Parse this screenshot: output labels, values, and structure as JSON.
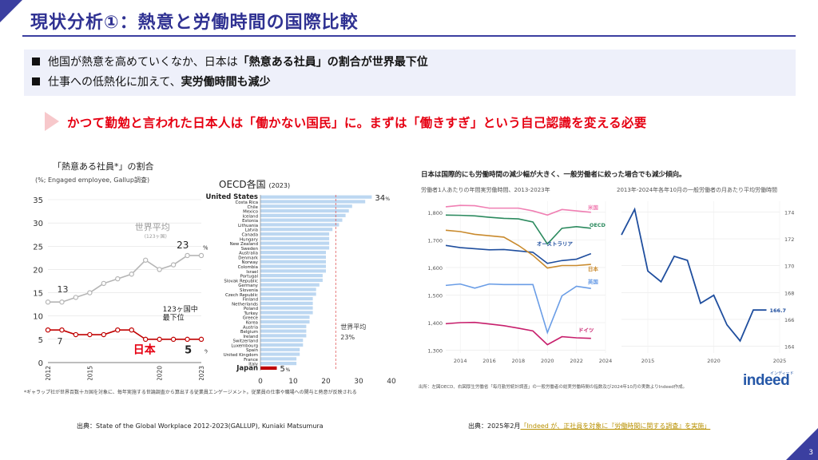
{
  "page": {
    "title": "現状分析①：熱意と労働時間の国際比較",
    "page_number": "3",
    "bullets": [
      {
        "pre": "他国が熱意を高めていくなか、日本は",
        "bold": "「熱意ある社員」の割合が世界最下位",
        "post": ""
      },
      {
        "pre": "仕事への低熱化に加えて、",
        "bold": "実労働時間も減少",
        "post": ""
      }
    ],
    "callout": "かつて勤勉と言われた日本人は「働かない国民」に。まずは「働きすぎ」という自己認識を変える必要",
    "left_title": "「熱意ある社員*」の割合",
    "left_sub": "(%; Engaged employee, Gallup調査)",
    "oecd_title": "OECD各国",
    "oecd_year": "(2023)",
    "left_footnote": "*ギャラップ社が世界百数十カ国を対象に、毎年実施する世論調査から算出する従業員エンゲージメント。従業員の仕事や職場への関与と熱意が反映される",
    "source_left": "出典：State of the Global Workplace 2012-2023(GALLUP), Kuniaki Matsumura",
    "source_right_pre": "出典：2025年2月",
    "source_right_link": "「Indeed が、正社員を対象に『労働時間に関する調査』を実施」",
    "right_title": "日本は国際的にも労働時間の減少幅が大きく、一般労働者に絞った場合でも減少傾向。",
    "panel_a_title": "労働者1人あたりの年間実労働時間、2013-2023年",
    "panel_b_title": "2013年-2024年各年10月の一般労働者の月あたり平均労働時間",
    "right_footnote": "出所：左図OECD、右図厚生労働省「毎月勤労統計調査」の一般労働者の総実労働時間の指数及び2024年10月の実数よりIndeed作成。",
    "indeed_logo": "indeed",
    "indeed_sub": "インディード"
  },
  "chart_data": [
    {
      "type": "line",
      "x": [
        2012,
        2013,
        2014,
        2015,
        2016,
        2017,
        2018,
        2019,
        2020,
        2021,
        2022,
        2023
      ],
      "x_tick_labels": [
        "2012",
        "2015",
        "2020",
        "2023"
      ],
      "yticks": [
        0,
        5,
        10,
        15,
        20,
        25,
        30,
        35
      ],
      "ylim": [
        0,
        35
      ],
      "series": [
        {
          "name": "世界平均",
          "name_sub": "(123ヶ国)",
          "values": [
            13,
            13,
            14,
            15,
            17,
            18,
            19,
            22,
            20,
            21,
            23,
            23
          ],
          "color": "#b5b5b5"
        },
        {
          "name": "日本",
          "values": [
            7,
            7,
            6,
            6,
            6,
            7,
            7,
            5,
            5,
            5,
            5,
            5
          ],
          "color": "#c00000"
        }
      ],
      "labels": {
        "world_start": "13",
        "world_end": "23",
        "world_end_unit": "%",
        "japan_start": "7",
        "japan_end": "5",
        "japan_end_unit": "%",
        "japan_rank_1": "123ヶ国中",
        "japan_rank_2": "最下位"
      }
    },
    {
      "type": "bar",
      "orientation": "horizontal",
      "categories": [
        "United States",
        "Costa Rica",
        "Chile",
        "Mexico",
        "Iceland",
        "Estonia",
        "Lithuania",
        "Latvia",
        "Canada",
        "Hungary",
        "New Zealand",
        "Sweden",
        "Australia",
        "Denmark",
        "Norway",
        "Colombia",
        "Israel",
        "Portugal",
        "Slovak Republic",
        "Germany",
        "Slovenia",
        "Czech Republic",
        "Finland",
        "Netherlands",
        "Poland",
        "Turkey",
        "Greece",
        "Korea",
        "Austria",
        "Belgium",
        "Ireland",
        "Switzerland",
        "Luxembourg",
        "Spain",
        "United Kingdom",
        "France",
        "Italy",
        "Japan"
      ],
      "values": [
        34,
        32,
        28,
        27,
        26,
        25,
        24,
        22,
        21,
        21,
        21,
        21,
        20,
        20,
        20,
        20,
        20,
        19,
        19,
        18,
        17,
        17,
        16,
        16,
        16,
        16,
        15,
        15,
        14,
        14,
        14,
        13,
        13,
        12,
        12,
        11,
        11,
        5
      ],
      "xticks": [
        0,
        10,
        20,
        30,
        40
      ],
      "xlim": [
        0,
        40
      ],
      "bar_color": "#bcd7f1",
      "highlight_color": "#c00000",
      "label_us": "34",
      "label_jp": "5",
      "unit": "%",
      "world_avg": 23,
      "world_avg_label_1": "世界平均",
      "world_avg_label_2": "23%"
    },
    {
      "type": "line",
      "x": [
        2013,
        2014,
        2015,
        2016,
        2017,
        2018,
        2019,
        2020,
        2021,
        2022,
        2023
      ],
      "xticks": [
        2014,
        2016,
        2018,
        2020,
        2022,
        2024
      ],
      "yticks": [
        1300,
        1400,
        1500,
        1600,
        1700,
        1800
      ],
      "ytick_labels": [
        "1,300",
        "1,400",
        "1,500",
        "1,600",
        "1,700",
        "1,800"
      ],
      "ylim": [
        1290,
        1840
      ],
      "xlim": [
        2013,
        2024
      ],
      "series": [
        {
          "name": "米国",
          "color": "#f07fb3",
          "values": [
            1820,
            1825,
            1824,
            1815,
            1815,
            1815,
            1805,
            1790,
            1810,
            1805,
            1800
          ]
        },
        {
          "name": "OECD",
          "color": "#2b8a5e",
          "values": [
            1790,
            1789,
            1787,
            1782,
            1778,
            1776,
            1765,
            1685,
            1742,
            1748,
            1742
          ]
        },
        {
          "name": "オーストラリア",
          "color": "#1f4e9e",
          "values": [
            1680,
            1672,
            1668,
            1664,
            1665,
            1660,
            1655,
            1615,
            1625,
            1630,
            1650
          ]
        },
        {
          "name": "日本",
          "color": "#c98a2d",
          "values": [
            1735,
            1730,
            1720,
            1715,
            1710,
            1680,
            1644,
            1598,
            1607,
            1607,
            1611
          ]
        },
        {
          "name": "英国",
          "color": "#6a9de6",
          "values": [
            1535,
            1540,
            1525,
            1540,
            1538,
            1538,
            1538,
            1364,
            1497,
            1532,
            1524
          ]
        },
        {
          "name": "ドイツ",
          "color": "#c71f6c",
          "values": [
            1396,
            1400,
            1401,
            1395,
            1389,
            1380,
            1370,
            1320,
            1349,
            1345,
            1343
          ]
        }
      ]
    },
    {
      "type": "line",
      "x": [
        2013,
        2014,
        2015,
        2016,
        2017,
        2018,
        2019,
        2020,
        2021,
        2022,
        2023,
        2024
      ],
      "xticks": [
        2015,
        2020,
        2025
      ],
      "yticks": [
        164,
        166,
        168,
        170,
        172,
        174
      ],
      "ylim": [
        163.5,
        174.8
      ],
      "xlim": [
        2013,
        2025
      ],
      "series": [
        {
          "name": "",
          "color": "#1f4e9e",
          "values": [
            172.3,
            174.2,
            169.6,
            168.8,
            170.7,
            170.4,
            167.2,
            167.8,
            165.6,
            164.4,
            166.7,
            166.7
          ]
        }
      ],
      "end_label": "166.7"
    }
  ]
}
